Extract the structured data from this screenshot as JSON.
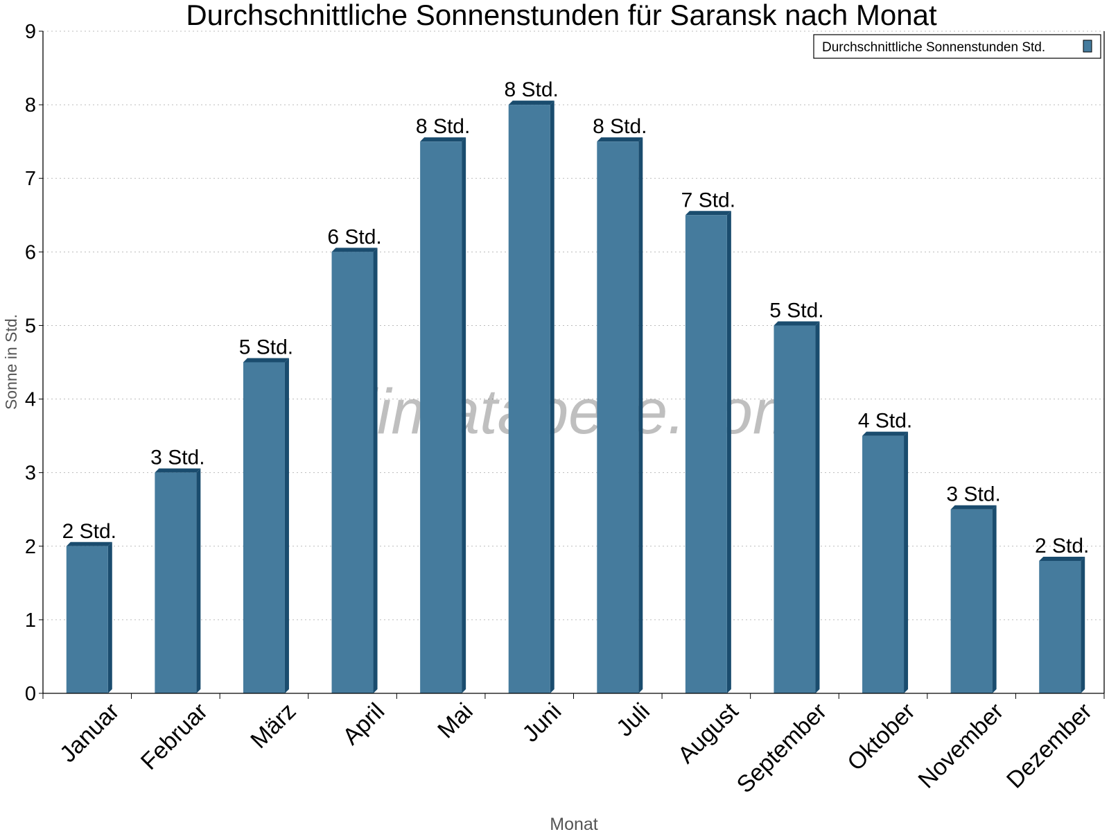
{
  "chart_data": {
    "type": "bar",
    "title": "Durchschnittliche Sonnenstunden für Saransk nach Monat",
    "xlabel": "Monat",
    "ylabel": "Sonne in Std.",
    "ylim": [
      0,
      9
    ],
    "yticks": [
      "0",
      "1",
      "2",
      "3",
      "4",
      "5",
      "6",
      "7",
      "8",
      "9"
    ],
    "grid": true,
    "legend_position": "top-right",
    "watermark": "klimatabelle.com",
    "categories": [
      "Januar",
      "Februar",
      "März",
      "April",
      "Mai",
      "Juni",
      "Juli",
      "August",
      "September",
      "Oktober",
      "November",
      "Dezember"
    ],
    "series": [
      {
        "name": "Durchschnittliche Sonnenstunden Std.",
        "color": "#457b9d",
        "side_color": "#1a4c6e",
        "values": [
          2,
          3,
          4.5,
          6,
          7.5,
          8,
          7.5,
          6.5,
          5,
          3.5,
          2.5,
          1.8
        ],
        "labels": [
          "2 Std.",
          "3 Std.",
          "5 Std.",
          "6 Std.",
          "8 Std.",
          "8 Std.",
          "8 Std.",
          "7 Std.",
          "5 Std.",
          "4 Std.",
          "3 Std.",
          "2 Std."
        ]
      }
    ]
  }
}
